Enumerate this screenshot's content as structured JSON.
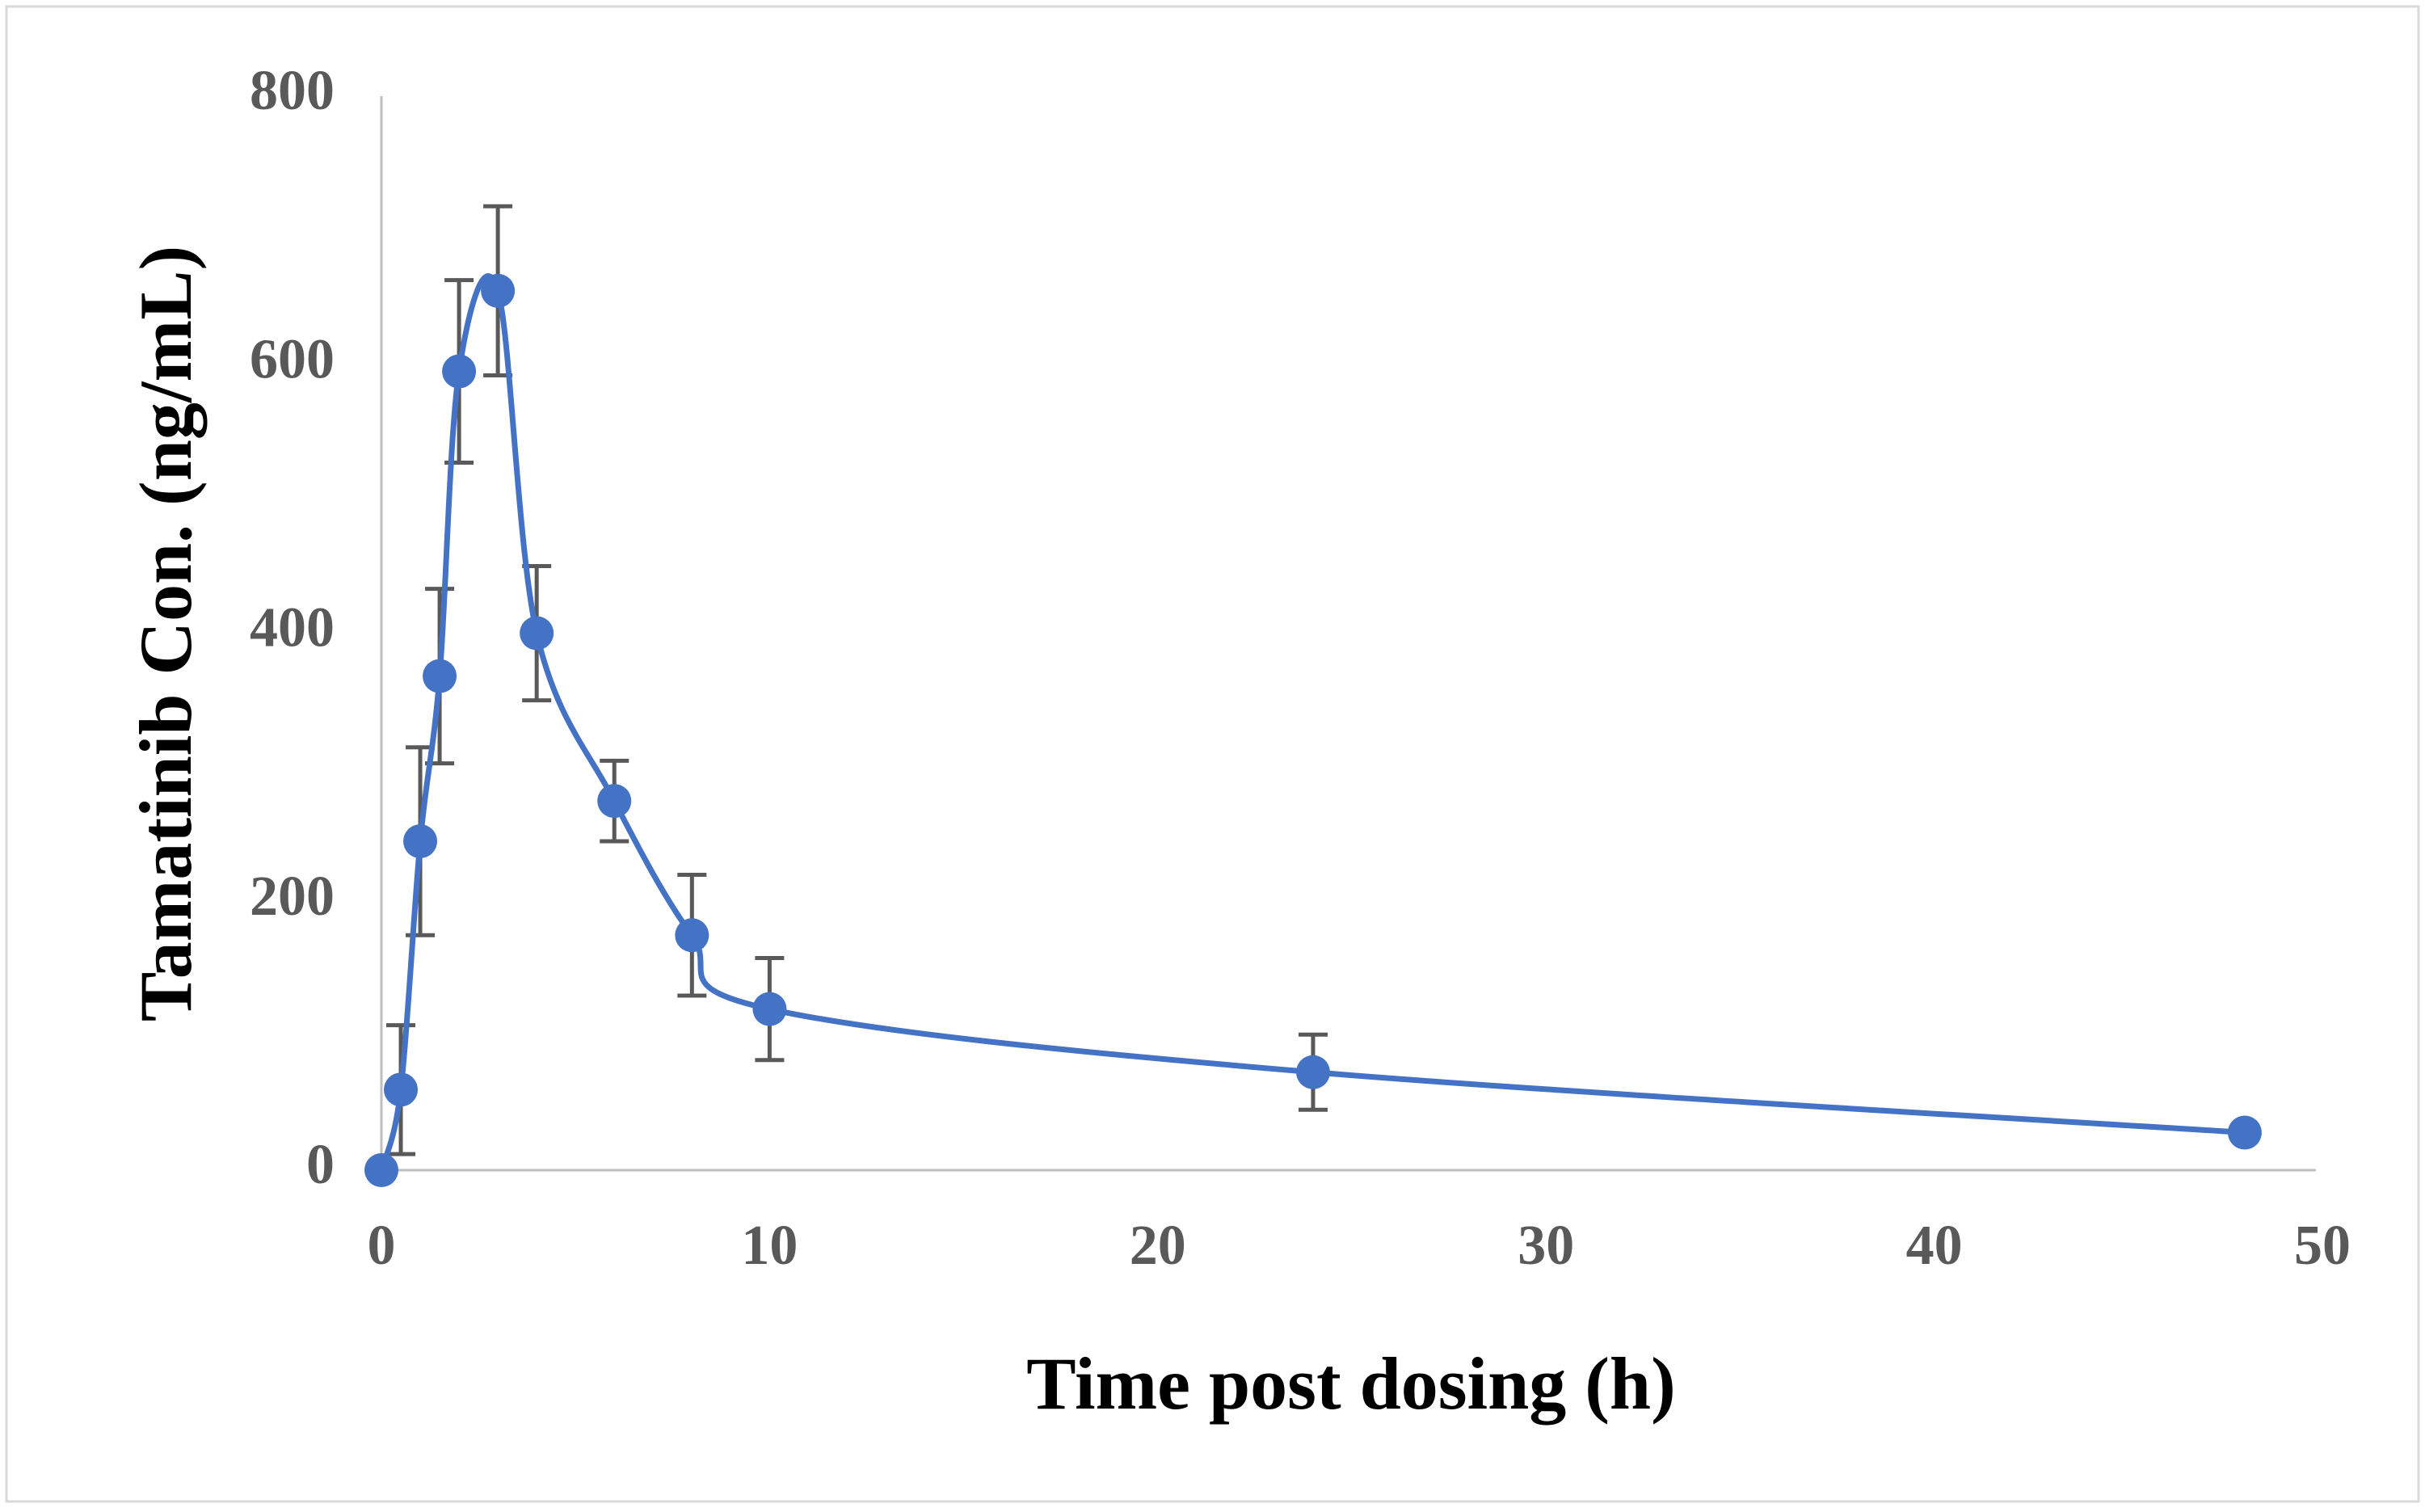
{
  "chart_data": {
    "type": "line",
    "xlabel": "Time post dosing (h)",
    "ylabel": "Tamatinib Con. (ng/mL)",
    "x": [
      0,
      0.5,
      1,
      1.5,
      2,
      3,
      4,
      6,
      8,
      10,
      24,
      48
    ],
    "series": [
      {
        "color": "#4472c4",
        "values": [
          0,
          60,
          245,
          368,
          595,
          655,
          400,
          275,
          175,
          120,
          73,
          28
        ],
        "errors": [
          0,
          48,
          70,
          65,
          68,
          63,
          50,
          30,
          45,
          38,
          28,
          0
        ]
      }
    ],
    "xlim": [
      0,
      50
    ],
    "xticks": [
      0,
      10,
      20,
      30,
      40,
      50
    ],
    "ylim": [
      0,
      800
    ],
    "yticks": [
      0,
      200,
      400,
      600,
      800
    ],
    "smooth": true
  }
}
